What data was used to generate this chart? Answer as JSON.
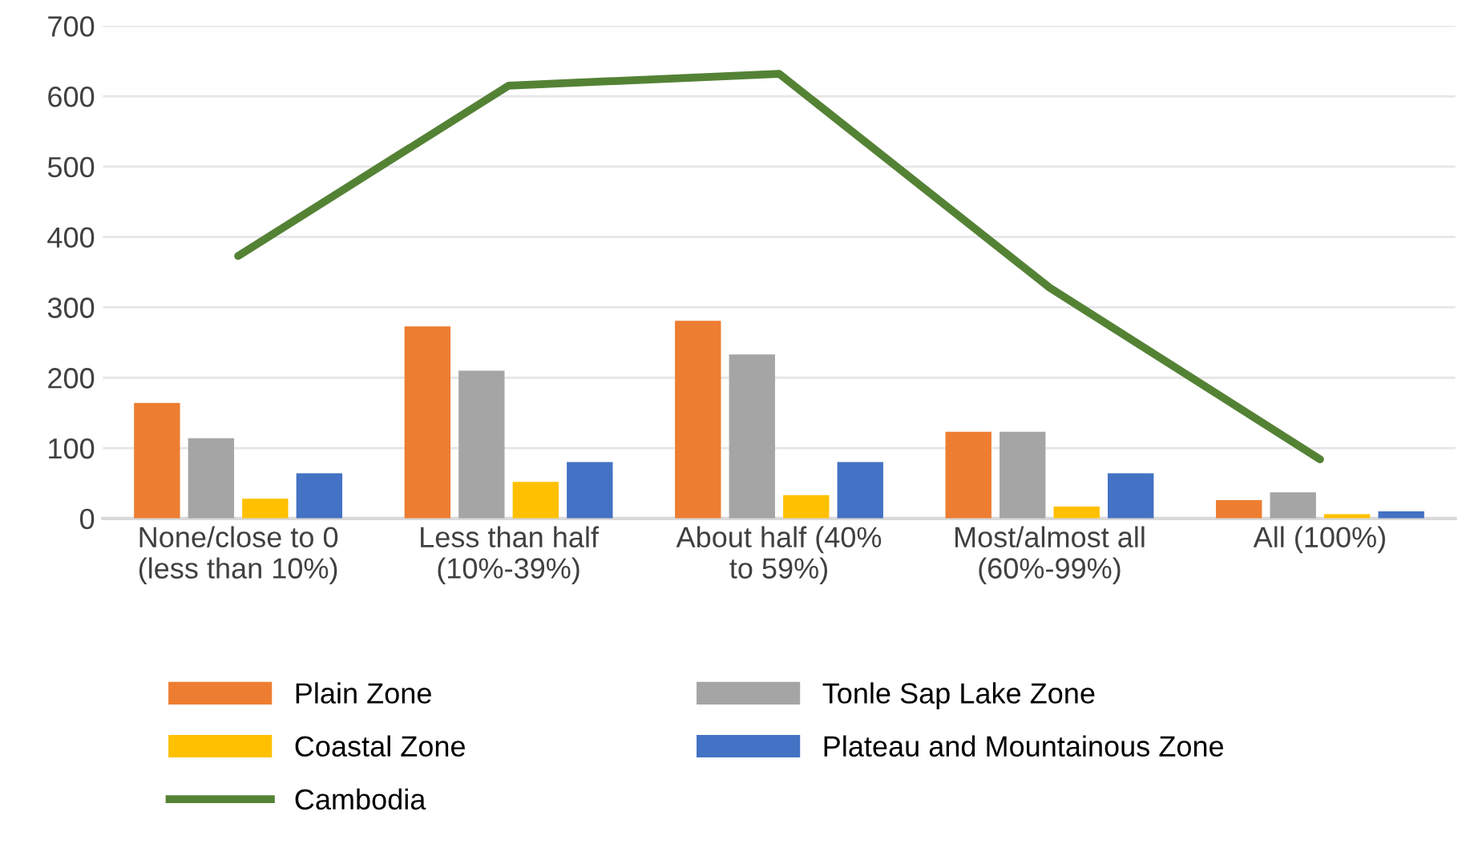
{
  "chart_data": {
    "type": "bar",
    "categories": [
      "None/close to 0\n(less than 10%)",
      "Less than half\n(10%-39%)",
      "About half (40%\nto 59%)",
      "Most/almost all\n(60%-99%)",
      "All (100%)"
    ],
    "series": [
      {
        "name": "Plain Zone",
        "color": "#ed7d31",
        "values": [
          164,
          273,
          281,
          123,
          26
        ]
      },
      {
        "name": "Tonle Sap Lake Zone",
        "color": "#a5a5a5",
        "values": [
          114,
          210,
          233,
          123,
          37
        ]
      },
      {
        "name": "Coastal Zone",
        "color": "#ffc000",
        "values": [
          28,
          52,
          33,
          17,
          6
        ]
      },
      {
        "name": "Plateau and Mountainous Zone",
        "color": "#4472c4",
        "values": [
          64,
          80,
          80,
          64,
          10
        ]
      },
      {
        "name": "Cambodia",
        "type": "line",
        "color": "#548235",
        "values": [
          373,
          615,
          632,
          328,
          84
        ]
      }
    ],
    "ylim": [
      0,
      700
    ],
    "yticks": [
      0,
      100,
      200,
      300,
      400,
      500,
      600,
      700
    ],
    "grid": "y",
    "legend": "bottom"
  }
}
